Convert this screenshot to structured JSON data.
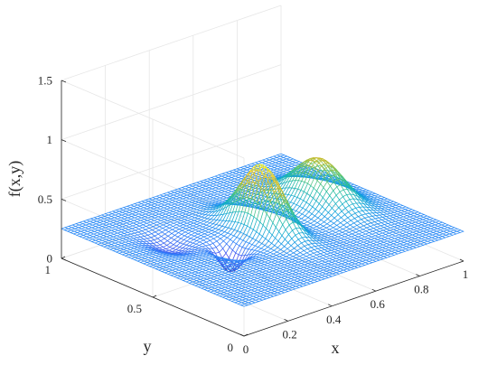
{
  "chart_data": {
    "type": "surface",
    "title": "",
    "xlabel": "x",
    "ylabel": "y",
    "zlabel": "f(x,y)",
    "xlim": [
      0,
      1
    ],
    "ylim": [
      0,
      1
    ],
    "zlim": [
      0,
      1.5
    ],
    "x_ticks": [
      "0",
      "0.2",
      "0.4",
      "0.6",
      "0.8",
      "1"
    ],
    "y_ticks": [
      "0",
      "0.5",
      "1"
    ],
    "z_ticks": [
      "0",
      "0.5",
      "1",
      "1.5"
    ],
    "grid": true,
    "colormap": [
      "#3e26a8",
      "#4750f0",
      "#2a85f8",
      "#10a5d8",
      "#1ebaaa",
      "#62c66c",
      "#c2bc2e",
      "#f5cd2f",
      "#f9fb15"
    ],
    "grid_resolution": [
      61,
      61
    ],
    "surface": {
      "baseline": 0.25,
      "peaks": [
        {
          "x": 0.5,
          "y": 0.5,
          "height": 0.55,
          "spread_x": 0.045,
          "spread_y": 0.11
        },
        {
          "x": 0.8,
          "y": 0.55,
          "height": 0.38,
          "spread_x": 0.065,
          "spread_y": 0.12
        },
        {
          "x": 0.31,
          "y": 0.45,
          "height": -0.2,
          "spread_x": 0.03,
          "spread_y": 0.05
        },
        {
          "x": 0.2,
          "y": 0.65,
          "height": -0.08,
          "spread_x": 0.05,
          "spread_y": 0.08
        }
      ],
      "tilt_x": 0.0,
      "tilt_y": 0.0
    }
  }
}
